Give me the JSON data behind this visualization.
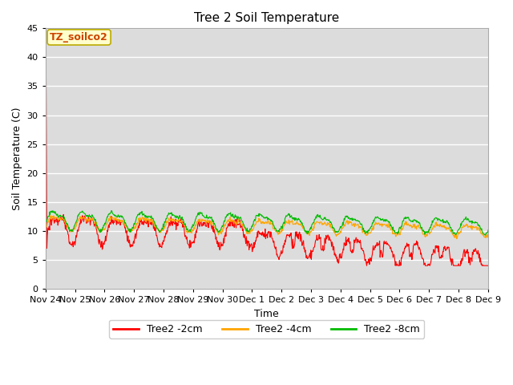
{
  "title": "Tree 2 Soil Temperature",
  "ylabel": "Soil Temperature (C)",
  "xlabel": "Time",
  "annotation": "TZ_soilco2",
  "ylim": [
    0,
    45
  ],
  "yticks": [
    0,
    5,
    10,
    15,
    20,
    25,
    30,
    35,
    40,
    45
  ],
  "colors": {
    "2cm": "#FF0000",
    "4cm": "#FFA500",
    "8cm": "#00BB00"
  },
  "legend_labels": [
    "Tree2 -2cm",
    "Tree2 -4cm",
    "Tree2 -8cm"
  ],
  "background_color": "#DCDCDC",
  "grid_color": "#FFFFFF",
  "xtick_labels": [
    "Nov 24",
    "Nov 25",
    "Nov 26",
    "Nov 27",
    "Nov 28",
    "Nov 29",
    "Nov 30",
    "Dec 1",
    "Dec 2",
    "Dec 3",
    "Dec 4",
    "Dec 5",
    "Dec 6",
    "Dec 7",
    "Dec 8",
    "Dec 9"
  ],
  "num_points": 960,
  "seed": 1234
}
